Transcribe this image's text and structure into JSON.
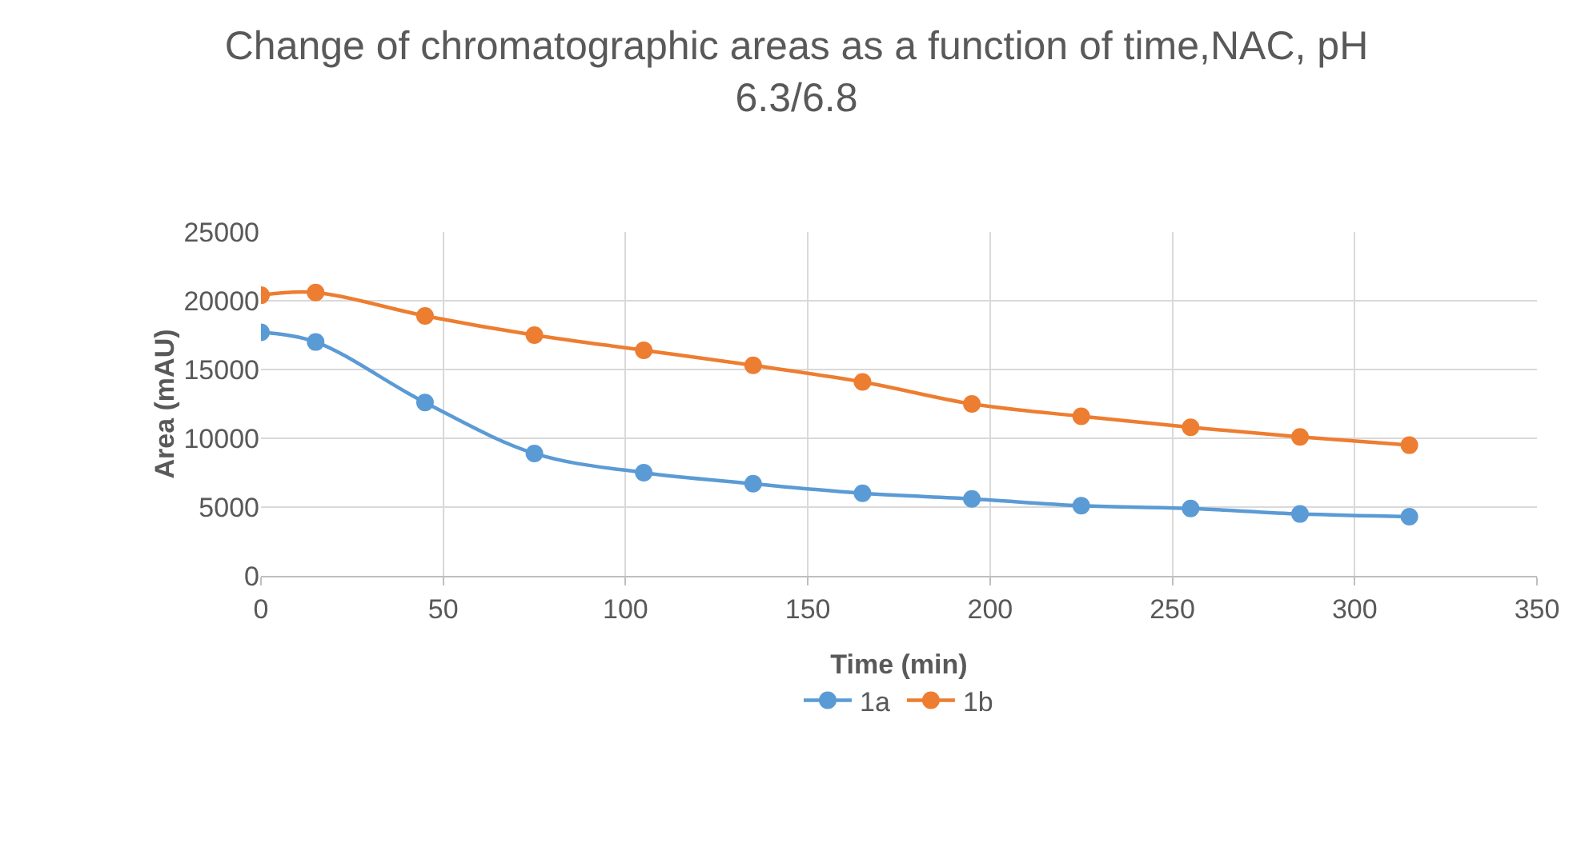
{
  "chart_data": {
    "type": "line",
    "title": "Change of chromatographic areas as a function of time,NAC, pH 6.3/6.8",
    "xlabel": "Time (min)",
    "ylabel": "Area (mAU)",
    "x": [
      0,
      15,
      45,
      75,
      105,
      135,
      165,
      195,
      225,
      255,
      285,
      315
    ],
    "series": [
      {
        "name": "1a",
        "color": "#5b9bd5",
        "values": [
          17700,
          17000,
          12600,
          8900,
          7500,
          6700,
          6000,
          5600,
          5100,
          4900,
          4500,
          4300
        ]
      },
      {
        "name": "1b",
        "color": "#ed7d31",
        "values": [
          20400,
          20600,
          18900,
          17500,
          16400,
          15300,
          14100,
          12500,
          11600,
          10800,
          10100,
          9500
        ]
      }
    ],
    "xlim": [
      0,
      350
    ],
    "xticks": [
      0,
      50,
      100,
      150,
      200,
      250,
      300,
      350
    ],
    "ylim": [
      0,
      25000
    ],
    "yticks": [
      0,
      5000,
      10000,
      15000,
      20000,
      25000
    ],
    "grid": true,
    "legend": "bottom",
    "marker": "circle",
    "line_style": "solid"
  }
}
